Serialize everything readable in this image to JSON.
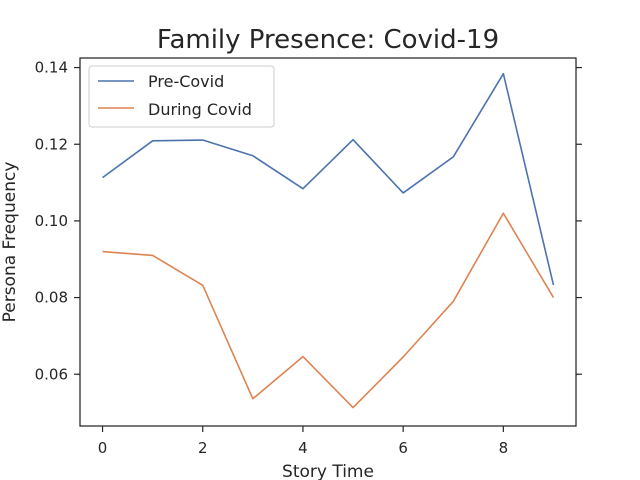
{
  "chart_data": {
    "type": "line",
    "title": "Family Presence: Covid-19",
    "xlabel": "Story Time",
    "ylabel": "Persona Frequency",
    "xlim": [
      -0.45,
      9.45
    ],
    "ylim": [
      0.0465,
      0.1425
    ],
    "x": [
      0,
      1,
      2,
      3,
      4,
      5,
      6,
      7,
      8,
      9
    ],
    "xticks": [
      "0",
      "2",
      "4",
      "6",
      "8"
    ],
    "yticks": [
      "0.06",
      "0.08",
      "0.10",
      "0.12",
      "0.14"
    ],
    "grid": false,
    "legend_position": "top-left",
    "series": [
      {
        "name": "Pre-Covid",
        "color": "#4c72b0",
        "values": [
          0.1113,
          0.1209,
          0.1211,
          0.117,
          0.1084,
          0.1212,
          0.1073,
          0.1167,
          0.1384,
          0.0833
        ]
      },
      {
        "name": "During Covid",
        "color": "#dd8452",
        "values": [
          0.092,
          0.091,
          0.0832,
          0.0536,
          0.0646,
          0.0513,
          0.0645,
          0.079,
          0.102,
          0.08
        ]
      }
    ]
  }
}
